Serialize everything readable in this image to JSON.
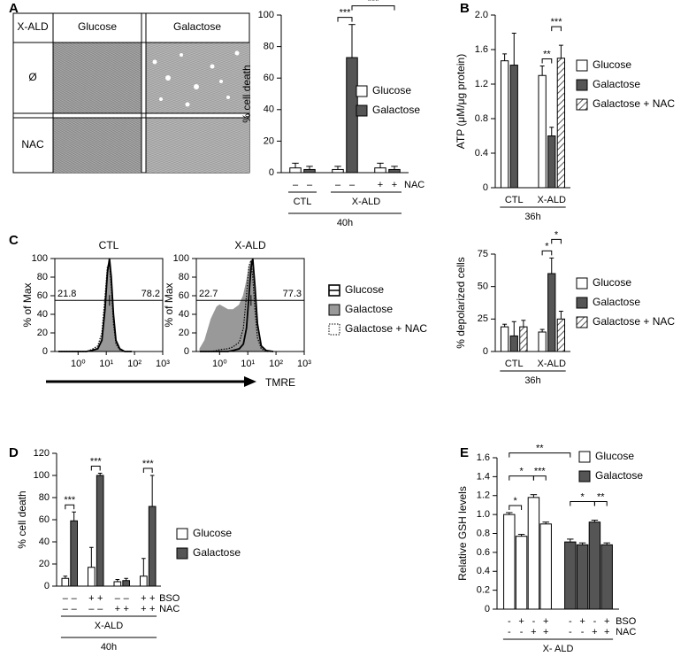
{
  "panels": [
    "A",
    "B",
    "C",
    "D",
    "E"
  ],
  "image_grid": {
    "corner": "X-ALD",
    "columns": [
      "Glucose",
      "Galactose"
    ],
    "rows": [
      "Ø",
      "NAC"
    ]
  },
  "flow_axis_label": "TMRE",
  "chart_data": [
    {
      "type": "bar",
      "y_label": "% cell death",
      "ylim": [
        0,
        100
      ],
      "yticks": [
        0,
        20,
        40,
        60,
        80,
        100
      ],
      "legend": "upper right",
      "series": [
        {
          "name": "Glucose",
          "color": "#ffffff",
          "values": [
            3,
            2,
            3
          ],
          "errors": [
            3,
            2,
            3
          ]
        },
        {
          "name": "Galactose",
          "color": "#555555",
          "values": [
            2,
            73,
            2
          ],
          "errors": [
            2,
            21,
            2
          ]
        }
      ],
      "sign_rows": [
        {
          "name": "NAC",
          "signs": [
            "–",
            "–",
            "+"
          ]
        }
      ],
      "bracket_rows": [
        [
          {
            "label": "CTL",
            "span": [
              0,
              0
            ]
          },
          {
            "label": "X-ALD",
            "span": [
              1,
              2
            ]
          }
        ],
        [
          {
            "label": "40h",
            "span": [
              0,
              2
            ]
          }
        ]
      ],
      "significance": [
        {
          "label": "***",
          "from": [
            0,
            1
          ],
          "to": [
            1,
            1
          ]
        },
        {
          "label": "***",
          "from": [
            1,
            1
          ],
          "to": [
            1,
            2
          ]
        }
      ]
    },
    {
      "type": "bar",
      "y_label": "ATP (μM/μg protein)",
      "ylim": [
        0,
        2
      ],
      "yticks": [
        0,
        0.4,
        0.8,
        1.2,
        1.6,
        {
          "value": 2,
          "label": "2.0"
        }
      ],
      "legend": "right",
      "categories": [
        "CTL",
        "X-ALD"
      ],
      "series": [
        {
          "name": "Glucose",
          "color": "#ffffff",
          "values": [
            1.47,
            1.3
          ],
          "errors": [
            0.08,
            0.11
          ]
        },
        {
          "name": "Galactose",
          "color": "#555555",
          "values": [
            1.42,
            0.6
          ],
          "errors": [
            0.37,
            0.1
          ]
        },
        {
          "name": "Galactose + NAC",
          "color": "#ffffff",
          "pattern": "hatch",
          "values": [
            null,
            1.5
          ],
          "errors": [
            null,
            0.15
          ]
        }
      ],
      "bracket_rows": [
        [
          {
            "label": "36h",
            "span": [
              0,
              1
            ]
          }
        ]
      ],
      "significance": [
        {
          "label": "**",
          "from": [
            0,
            1
          ],
          "to": [
            1,
            1
          ]
        },
        {
          "label": "***",
          "from": [
            1,
            1
          ],
          "to": [
            2,
            1
          ]
        }
      ]
    },
    {
      "type": "flow",
      "title": "CTL",
      "y_label": "% of Max",
      "xscale": "log",
      "xlim": [
        0.15,
        1000
      ],
      "xticks": [
        {
          "value": 1,
          "label": "10⁰"
        },
        {
          "value": 10,
          "label": "10¹"
        },
        {
          "value": 100,
          "label": "10²"
        },
        {
          "value": 1000,
          "label": "10³"
        }
      ],
      "ylim": [
        0,
        100
      ],
      "yticks": [
        0,
        20,
        40,
        60,
        80,
        100
      ],
      "gate_x": 13,
      "gate_y": 55,
      "gate_percentages": [
        21.8,
        78.2
      ],
      "x": [
        0.2,
        0.3,
        0.5,
        0.8,
        1,
        2,
        3,
        5,
        7,
        9,
        11,
        13,
        15,
        18,
        22,
        30,
        45,
        80
      ],
      "series": [
        {
          "color": "#999999",
          "style": "filled",
          "values": [
            0,
            0,
            0,
            0,
            0,
            0,
            1,
            4,
            15,
            50,
            90,
            97,
            75,
            35,
            10,
            2,
            0,
            0
          ]
        },
        {
          "color": "#000000",
          "style": "solid",
          "values": [
            0,
            0,
            0,
            0,
            0,
            0,
            1,
            3,
            12,
            45,
            85,
            100,
            80,
            40,
            12,
            3,
            0,
            0
          ]
        },
        {
          "color": "#000000",
          "style": "dotted",
          "values": [
            0,
            0,
            0,
            0,
            0,
            0,
            2,
            6,
            20,
            58,
            92,
            95,
            70,
            30,
            8,
            2,
            0,
            0
          ]
        }
      ]
    },
    {
      "type": "flow",
      "title": "X-ALD",
      "y_label": "% of Max",
      "xscale": "log",
      "xlim": [
        0.15,
        1000
      ],
      "legend": "right",
      "xticks": [
        {
          "value": 1,
          "label": "10⁰"
        },
        {
          "value": 10,
          "label": "10¹"
        },
        {
          "value": 100,
          "label": "10²"
        },
        {
          "value": 1000,
          "label": "10³"
        }
      ],
      "ylim": [
        0,
        100
      ],
      "yticks": [
        0,
        20,
        40,
        60,
        80,
        100
      ],
      "gate_x": 13,
      "gate_y": 55,
      "gate_percentages": [
        22.7,
        77.3
      ],
      "x": [
        0.2,
        0.3,
        0.5,
        0.8,
        1,
        2,
        3,
        5,
        7,
        9,
        11,
        13,
        15,
        18,
        22,
        30,
        45,
        80
      ],
      "series": [
        {
          "name": "Glucose",
          "color": "#000000",
          "style": "solid",
          "values": [
            0,
            0,
            0,
            0,
            0,
            0,
            1,
            3,
            8,
            25,
            60,
            90,
            100,
            70,
            30,
            6,
            1,
            0
          ]
        },
        {
          "name": "Galactose",
          "color": "#999999",
          "style": "filled",
          "values": [
            3,
            12,
            35,
            48,
            50,
            45,
            45,
            50,
            60,
            75,
            90,
            96,
            90,
            60,
            25,
            5,
            1,
            0
          ]
        },
        {
          "name": "Galactose + NAC",
          "color": "#000000",
          "style": "dotted",
          "values": [
            0,
            0,
            0,
            1,
            2,
            3,
            5,
            10,
            25,
            60,
            92,
            98,
            80,
            45,
            15,
            3,
            0,
            0
          ]
        }
      ]
    },
    {
      "type": "bar",
      "y_label": "% depolarized cells",
      "ylim": [
        0,
        75
      ],
      "yticks": [
        0,
        25,
        50,
        75
      ],
      "legend": "right",
      "categories": [
        "CTL",
        "X-ALD"
      ],
      "series": [
        {
          "name": "Glucose",
          "color": "#ffffff",
          "values": [
            19,
            15
          ],
          "errors": [
            2,
            2
          ]
        },
        {
          "name": "Galactose",
          "color": "#555555",
          "values": [
            12,
            60
          ],
          "errors": [
            11,
            12
          ]
        },
        {
          "name": "Galactose + NAC",
          "color": "#ffffff",
          "pattern": "hatch",
          "values": [
            19,
            25
          ],
          "errors": [
            5,
            6
          ]
        }
      ],
      "bracket_rows": [
        [
          {
            "label": "36h",
            "span": [
              0,
              1
            ]
          }
        ]
      ],
      "significance": [
        {
          "label": "*",
          "from": [
            0,
            1
          ],
          "to": [
            1,
            1
          ]
        },
        {
          "label": "*",
          "from": [
            1,
            1
          ],
          "to": [
            2,
            1
          ]
        }
      ]
    },
    {
      "type": "bar",
      "y_label": "% cell death",
      "ylim": [
        0,
        120
      ],
      "yticks": [
        0,
        20,
        40,
        60,
        80,
        100,
        120
      ],
      "legend": "right",
      "series": [
        {
          "name": "Glucose",
          "color": "#ffffff",
          "values": [
            7,
            17,
            4,
            9
          ],
          "errors": [
            2,
            18,
            2,
            16
          ]
        },
        {
          "name": "Galactose",
          "color": "#555555",
          "values": [
            59,
            100,
            5,
            72
          ],
          "errors": [
            8,
            2,
            2,
            28
          ]
        }
      ],
      "sign_rows": [
        {
          "name": "BSO",
          "signs": [
            "–",
            "+",
            "–",
            "+"
          ]
        },
        {
          "name": "NAC",
          "signs": [
            "–",
            "–",
            "+",
            "+"
          ]
        }
      ],
      "bracket_rows": [
        [
          {
            "label": "X-ALD",
            "span": [
              0,
              3
            ]
          }
        ],
        [
          {
            "label": "40h",
            "span": [
              0,
              3
            ]
          }
        ]
      ],
      "significance": [
        {
          "label": "***",
          "from": [
            0,
            0
          ],
          "to": [
            1,
            0
          ]
        },
        {
          "label": "***",
          "from": [
            0,
            1
          ],
          "to": [
            1,
            1
          ]
        },
        {
          "label": "***",
          "from": [
            0,
            3
          ],
          "to": [
            1,
            3
          ]
        }
      ]
    },
    {
      "type": "bar",
      "y_label": "Relative GSH levels",
      "ylim": [
        0,
        1.6
      ],
      "yticks": [
        0,
        0.2,
        0.4,
        0.6,
        0.8,
        {
          "value": 1,
          "label": "1.0"
        },
        1.2,
        1.4,
        1.6
      ],
      "legend": "upper right",
      "grouping": "by-series",
      "series": [
        {
          "name": "Glucose",
          "color": "#ffffff",
          "values": [
            1.0,
            0.77,
            1.18,
            0.9
          ],
          "errors": [
            0.02,
            0.02,
            0.03,
            0.02
          ]
        },
        {
          "name": "Galactose",
          "color": "#555555",
          "values": [
            0.71,
            0.68,
            0.92,
            0.68
          ],
          "errors": [
            0.03,
            0.02,
            0.02,
            0.02
          ]
        }
      ],
      "sign_rows": [
        {
          "name": "BSO",
          "signs": [
            "-",
            "+",
            "-",
            "+"
          ]
        },
        {
          "name": "NAC",
          "signs": [
            "-",
            "-",
            "+",
            "+"
          ]
        }
      ],
      "bracket_rows": [
        [
          {
            "label": "X- ALD",
            "span": [
              0,
              3
            ]
          }
        ]
      ],
      "significance": [
        {
          "label": "*",
          "from": [
            0,
            0
          ],
          "to": [
            0,
            1
          ]
        },
        {
          "label": "*",
          "from": [
            0,
            0
          ],
          "to": [
            0,
            2
          ]
        },
        {
          "label": "***",
          "from": [
            0,
            2
          ],
          "to": [
            0,
            3
          ]
        },
        {
          "label": "**",
          "from": [
            0,
            0
          ],
          "to": [
            1,
            0
          ]
        },
        {
          "label": "*",
          "from": [
            1,
            0
          ],
          "to": [
            1,
            2
          ]
        },
        {
          "label": "**",
          "from": [
            1,
            2
          ],
          "to": [
            1,
            3
          ]
        }
      ]
    }
  ]
}
